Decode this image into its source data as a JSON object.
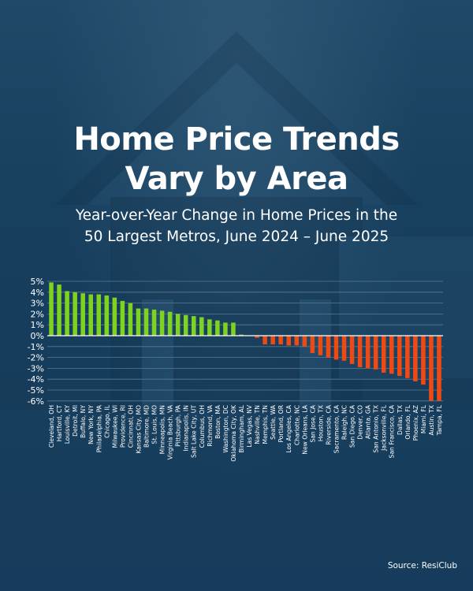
{
  "header": {
    "title_line1": "Home Price Trends",
    "title_line2": "Vary by Area",
    "subtitle_line1": "Year-over-Year Change in Home Prices in the",
    "subtitle_line2": "50 Largest Metros, June 2024 – June 2025"
  },
  "footer": {
    "source": "Source:  ResiClub"
  },
  "colors": {
    "positive": "#7ed321",
    "negative": "#f04a14",
    "gridline": "#5a7a93",
    "zero_line": "#ffffff",
    "text": "#ffffff"
  },
  "chart_data": {
    "type": "bar",
    "title": "",
    "xlabel": "",
    "ylabel": "",
    "ylim": [
      -6,
      5
    ],
    "yticks": [
      "5%",
      "4%",
      "3%",
      "2%",
      "1%",
      "0%",
      "-1%",
      "-2%",
      "-3%",
      "-4%",
      "-5%",
      "-6%"
    ],
    "grid": true,
    "categories": [
      "Cleveland, OH",
      "Hartford, CT",
      "Louisville, KY",
      "Detroit, MI",
      "Buffalo, NY",
      "New York, NY",
      "Philadelphia, PA",
      "Chicago, IL",
      "Milwaukee, WI",
      "Providence, RI",
      "Cincinnati, OH",
      "Kansas City, MO",
      "Baltimore, MD",
      "St. Louis, MO",
      "Minneapolis, MN",
      "Virginia Beach, VA",
      "Pittsburgh, PA",
      "Indianapolis, IN",
      "Salt Lake City, UT",
      "Columbus, OH",
      "Richmond, VA",
      "Boston, MA",
      "Washington, DC",
      "Oklahoma City, OK",
      "Birmingham, AL",
      "Las Vegas, NV",
      "Nashville, TN",
      "Memphis, TN",
      "Seattle, WA",
      "Portland, OR",
      "Los Angeles, CA",
      "Charlotte, NC",
      "New Orleans, LA",
      "San Jose, CA",
      "Houston, TX",
      "Riverside, CA",
      "Sacramento, CA",
      "Raleigh, NC",
      "San Diego, CA",
      "Denver, CO",
      "Atlanta, GA",
      "San Antonio, TX",
      "Jacksonville, FL",
      "San Francisco, CA",
      "Dallas, TX",
      "Orlando, FL",
      "Phoenix, AZ",
      "Miami, FL",
      "Austin, TX",
      "Tampa, FL"
    ],
    "values": [
      4.9,
      4.7,
      4.1,
      4.0,
      3.9,
      3.8,
      3.8,
      3.7,
      3.5,
      3.2,
      3.0,
      2.5,
      2.5,
      2.4,
      2.3,
      2.2,
      2.0,
      1.9,
      1.8,
      1.7,
      1.5,
      1.4,
      1.2,
      1.2,
      0.1,
      0.0,
      -0.2,
      -0.8,
      -0.8,
      -0.8,
      -0.9,
      -0.9,
      -1.0,
      -1.6,
      -1.8,
      -2.0,
      -2.2,
      -2.3,
      -2.6,
      -2.9,
      -3.0,
      -3.1,
      -3.4,
      -3.5,
      -3.7,
      -3.9,
      -4.2,
      -4.5,
      -6.0,
      -6.0
    ]
  }
}
